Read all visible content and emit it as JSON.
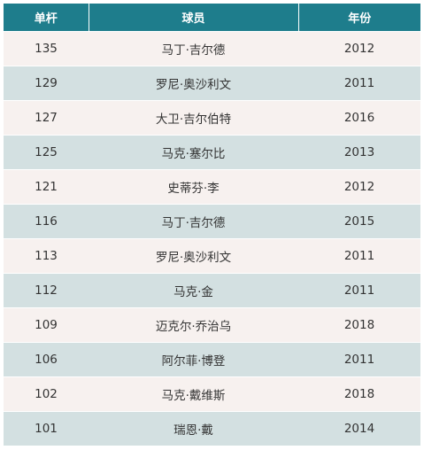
{
  "table": {
    "headers": [
      "单杆",
      "球员",
      "年份"
    ],
    "rows": [
      {
        "score": "135",
        "player": "马丁·吉尔德",
        "year": "2012"
      },
      {
        "score": "129",
        "player": "罗尼·奥沙利文",
        "year": "2011"
      },
      {
        "score": "127",
        "player": "大卫·吉尔伯特",
        "year": "2016"
      },
      {
        "score": "125",
        "player": "马克·塞尔比",
        "year": "2013"
      },
      {
        "score": "121",
        "player": "史蒂芬·李",
        "year": "2012"
      },
      {
        "score": "116",
        "player": "马丁·吉尔德",
        "year": "2015"
      },
      {
        "score": "113",
        "player": "罗尼·奥沙利文",
        "year": "2011"
      },
      {
        "score": "112",
        "player": "马克·金",
        "year": "2011"
      },
      {
        "score": "109",
        "player": "迈克尔·乔治乌",
        "year": "2018"
      },
      {
        "score": "106",
        "player": "阿尔菲·博登",
        "year": "2011"
      },
      {
        "score": "102",
        "player": "马克·戴维斯",
        "year": "2018"
      },
      {
        "score": "101",
        "player": "瑞恩·戴",
        "year": "2014"
      }
    ]
  },
  "colors": {
    "header_bg": "#1e7d8c",
    "row_odd_bg": "#f7f1ef",
    "row_even_bg": "#d3e0e1"
  }
}
